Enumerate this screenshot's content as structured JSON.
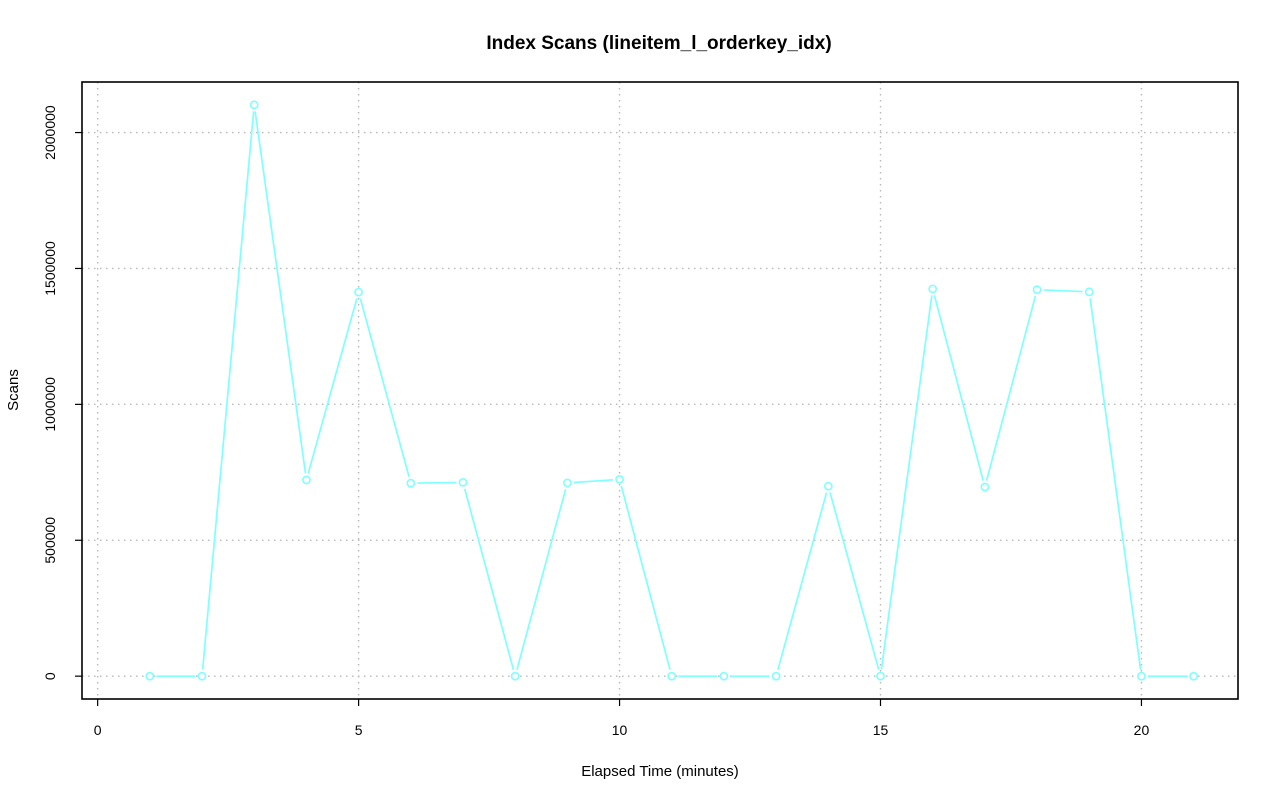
{
  "chart_data": {
    "type": "line",
    "title": "Index Scans (lineitem_l_orderkey_idx)",
    "xlabel": "Elapsed Time (minutes)",
    "ylabel": "Scans",
    "xlim": [
      -0.3,
      21.85
    ],
    "ylim": [
      -84000,
      2186000
    ],
    "xticks": [
      0,
      5,
      10,
      15,
      20
    ],
    "xtick_labels": [
      "0",
      "5",
      "10",
      "15",
      "20"
    ],
    "yticks": [
      0,
      500000,
      1000000,
      1500000,
      2000000
    ],
    "ytick_labels": [
      "0",
      "500000",
      "1000000",
      "1500000",
      "2000000"
    ],
    "grid": true,
    "series": [
      {
        "color": "#7fffff",
        "x": [
          1,
          2,
          3,
          4,
          5,
          6,
          7,
          8,
          9,
          10,
          11,
          12,
          13,
          14,
          15,
          16,
          17,
          18,
          19,
          20,
          21
        ],
        "values": [
          0,
          0,
          2102000,
          722000,
          1413000,
          710000,
          713000,
          0,
          711000,
          724000,
          0,
          0,
          0,
          699000,
          0,
          1425000,
          696000,
          1422000,
          1414000,
          0,
          0
        ]
      }
    ]
  }
}
